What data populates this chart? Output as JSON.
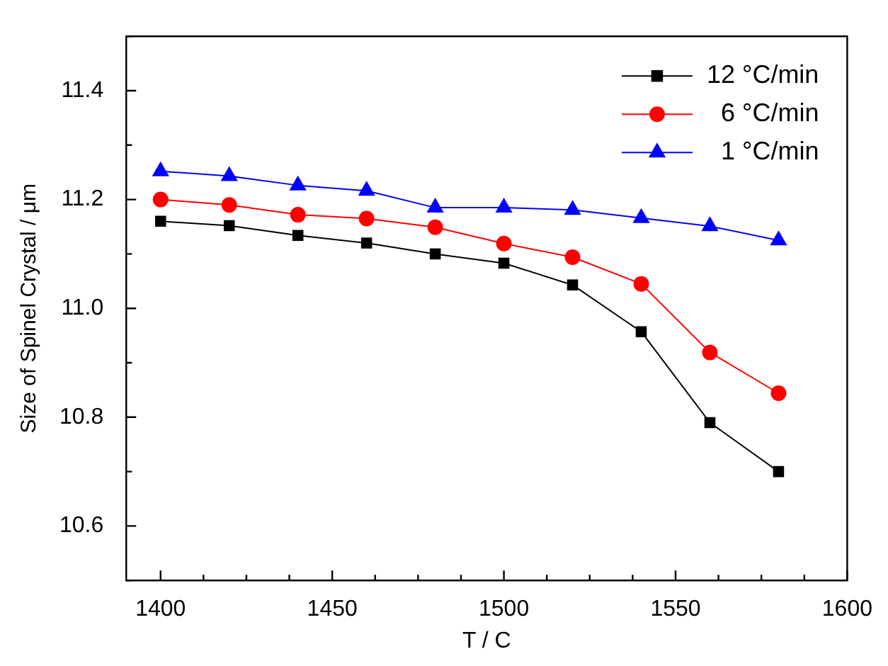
{
  "chart_data": {
    "type": "line",
    "xlabel": "T / C",
    "ylabel": "Size of Spinel Crystal / μm",
    "x": [
      1400,
      1420,
      1440,
      1460,
      1480,
      1500,
      1520,
      1540,
      1560,
      1580
    ],
    "series": [
      {
        "name": "12 °C/min",
        "color": "#000000",
        "marker": "square",
        "values": [
          11.16,
          11.152,
          11.134,
          11.12,
          11.1,
          11.083,
          11.043,
          10.957,
          10.79,
          10.7
        ]
      },
      {
        "name": "6 °C/min",
        "color": "#ff0000",
        "marker": "circle",
        "values": [
          11.2,
          11.19,
          11.172,
          11.165,
          11.149,
          11.119,
          11.094,
          11.045,
          10.919,
          10.844
        ]
      },
      {
        "name": "1 °C/min",
        "color": "#0000ff",
        "marker": "triangle",
        "values": [
          11.252,
          11.243,
          11.226,
          11.216,
          11.185,
          11.185,
          11.181,
          11.166,
          11.151,
          11.125
        ]
      }
    ],
    "xlim": [
      1390,
      1600
    ],
    "xticks": [
      1400,
      {
        "value": 1412.5,
        "label": null
      },
      {
        "value": 1425,
        "label": null
      },
      {
        "value": 1437.5,
        "label": null
      },
      1450,
      {
        "value": 1462.5,
        "label": null
      },
      {
        "value": 1475,
        "label": null
      },
      {
        "value": 1487.5,
        "label": null
      },
      1500,
      {
        "value": 1512.5,
        "label": null
      },
      {
        "value": 1525,
        "label": null
      },
      {
        "value": 1537.5,
        "label": null
      },
      1550,
      {
        "value": 1562.5,
        "label": null
      },
      {
        "value": 1575,
        "label": null
      },
      {
        "value": 1587.5,
        "label": null
      },
      1600
    ],
    "ylim": [
      10.5,
      11.5
    ],
    "yticks": [
      {
        "value": 10.5,
        "label": null
      },
      10.6,
      {
        "value": 10.7,
        "label": null
      },
      10.8,
      {
        "value": 10.9,
        "label": null
      },
      {
        "value": 11,
        "label": "11.0"
      },
      {
        "value": 11.1,
        "label": null
      },
      11.2,
      {
        "value": 11.3,
        "label": null
      },
      11.4,
      {
        "value": 11.5,
        "label": null
      }
    ],
    "legend": "top right"
  }
}
